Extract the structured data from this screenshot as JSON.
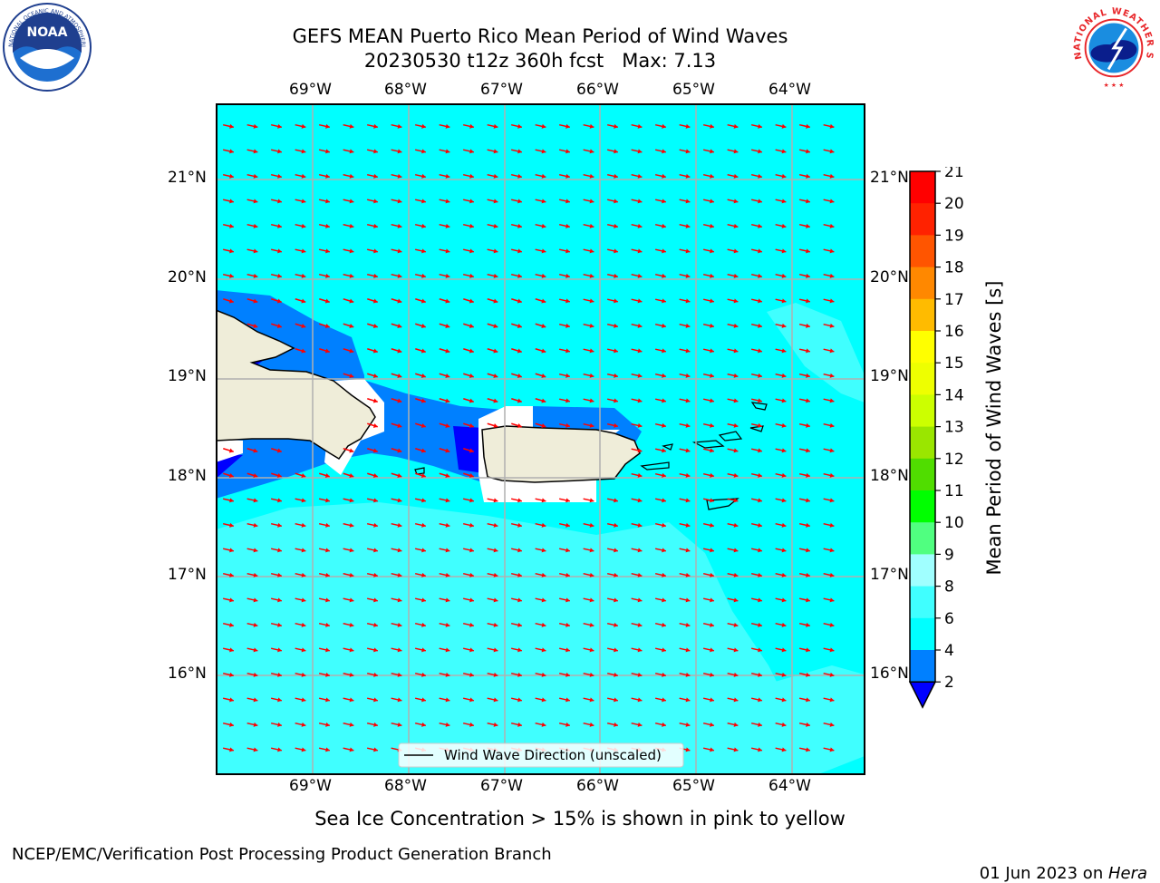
{
  "header": {
    "title_line1": "GEFS MEAN Puerto Rico Mean Period of Wind Waves",
    "title_line2": "20230530 t12z 360h fcst   Max: 7.13"
  },
  "logos": {
    "left_text": "NOAA",
    "left_ring": "NATIONAL OCEANIC AND ATMOSPHERIC ADMINISTRATION · U.S. DEPARTMENT OF COMMERCE",
    "right_ring": "NATIONAL WEATHER SERVICE"
  },
  "map": {
    "lon_labels": [
      "69°W",
      "68°W",
      "67°W",
      "66°W",
      "65°W",
      "64°W"
    ],
    "lat_labels": [
      "21°N",
      "20°N",
      "19°N",
      "18°N",
      "17°N",
      "16°N"
    ],
    "legend_label": "Wind Wave Direction (unscaled)",
    "water_color": "#00ffff",
    "land_color": "#efedd9",
    "arrow_color": "#ff0000"
  },
  "colorbar": {
    "label": "Mean Period of Wind Waves [s]",
    "ticks": [
      "2",
      "4",
      "6",
      "8",
      "9",
      "10",
      "11",
      "12",
      "13",
      "14",
      "15",
      "16",
      "17",
      "18",
      "19",
      "20",
      "21"
    ],
    "colors": [
      "#0000ff",
      "#0080ff",
      "#00ffff",
      "#40ffff",
      "#a0ffff",
      "#50ff80",
      "#00ff00",
      "#50dd00",
      "#9ae600",
      "#ccff00",
      "#eeff00",
      "#ffff00",
      "#ffbb00",
      "#ff8800",
      "#ff5500",
      "#ff2200",
      "#ff0000"
    ]
  },
  "caption": "Sea Ice Concentration > 15% is shown in pink to yellow",
  "footer": {
    "left": "NCEP/EMC/Verification Post Processing Product Generation Branch",
    "right_prefix": "01 Jun 2023 on ",
    "right_host": "Hera"
  }
}
